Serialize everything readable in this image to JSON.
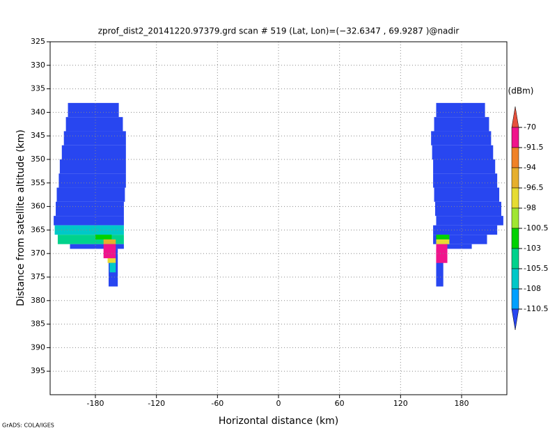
{
  "chart_data": {
    "type": "heatmap",
    "title": "zprof_dist2_20141220.97379.grd  scan # 519  (Lat, Lon)=(−32.6347 , 69.9287 )@nadir",
    "xlabel": "Horizontal distance (km)",
    "ylabel": "Distance from satellite altitude (km)",
    "footer": "GrADS: COLA/IGES",
    "xlim": [
      -224.5,
      224.5
    ],
    "xticks": [
      -180,
      -120,
      -60,
      0,
      60,
      120,
      180
    ],
    "ylim": [
      400,
      325
    ],
    "yticks": [
      325,
      330,
      335,
      340,
      345,
      350,
      355,
      360,
      365,
      370,
      375,
      380,
      385,
      390,
      395
    ],
    "grid": true,
    "colorbar": {
      "label": "(dBm)",
      "levels": [
        -70,
        -91.5,
        -94,
        -96.5,
        -98,
        -100.5,
        -103,
        -105.5,
        -108,
        -110.5
      ],
      "colors": [
        "#e6503c",
        "#f0148c",
        "#f08228",
        "#e6af2d",
        "#e6dc32",
        "#a0e632",
        "#00d200",
        "#00d28c",
        "#00c8c8",
        "#00a0ff",
        "#2846f0"
      ]
    },
    "cells": [
      {
        "x": [
          -207,
          -157
        ],
        "y": [
          338,
          341
        ],
        "value": -112
      },
      {
        "x": [
          -209,
          -153
        ],
        "y": [
          341,
          344
        ],
        "value": -112
      },
      {
        "x": [
          -211,
          -150
        ],
        "y": [
          344,
          347
        ],
        "value": -112
      },
      {
        "x": [
          -213,
          -150
        ],
        "y": [
          347,
          350
        ],
        "value": -112
      },
      {
        "x": [
          -215,
          -150
        ],
        "y": [
          350,
          353
        ],
        "value": -112
      },
      {
        "x": [
          -216,
          -150
        ],
        "y": [
          353,
          356
        ],
        "value": -112
      },
      {
        "x": [
          -218,
          -151
        ],
        "y": [
          356,
          359
        ],
        "value": -112
      },
      {
        "x": [
          -219,
          -152
        ],
        "y": [
          359,
          362
        ],
        "value": -112
      },
      {
        "x": [
          -221,
          -152
        ],
        "y": [
          362,
          364
        ],
        "value": -112
      },
      {
        "x": [
          -220,
          -152
        ],
        "y": [
          364,
          366
        ],
        "value": -107
      },
      {
        "x": [
          -217,
          -152
        ],
        "y": [
          366,
          368
        ],
        "value": -104
      },
      {
        "x": [
          -205,
          -152
        ],
        "y": [
          368,
          369
        ],
        "value": -112
      },
      {
        "x": [
          -167,
          -158
        ],
        "y": [
          369,
          377
        ],
        "value": -112
      },
      {
        "x": [
          -180,
          -164
        ],
        "y": [
          366,
          367
        ],
        "value": -101.5
      },
      {
        "x": [
          -172,
          -160
        ],
        "y": [
          367,
          368
        ],
        "value": -95
      },
      {
        "x": [
          -172,
          -160
        ],
        "y": [
          368,
          371
        ],
        "value": -80
      },
      {
        "x": [
          -168,
          -160
        ],
        "y": [
          371,
          372
        ],
        "value": -97
      },
      {
        "x": [
          -166,
          -160
        ],
        "y": [
          372,
          374
        ],
        "value": -107
      },
      {
        "x": [
          155,
          203
        ],
        "y": [
          338,
          341
        ],
        "value": -112
      },
      {
        "x": [
          153,
          207
        ],
        "y": [
          341,
          344
        ],
        "value": -112
      },
      {
        "x": [
          150,
          209
        ],
        "y": [
          344,
          347
        ],
        "value": -112
      },
      {
        "x": [
          151,
          211
        ],
        "y": [
          347,
          350
        ],
        "value": -112
      },
      {
        "x": [
          152,
          213
        ],
        "y": [
          350,
          353
        ],
        "value": -112
      },
      {
        "x": [
          152,
          215
        ],
        "y": [
          353,
          356
        ],
        "value": -112
      },
      {
        "x": [
          153,
          217
        ],
        "y": [
          356,
          359
        ],
        "value": -112
      },
      {
        "x": [
          154,
          219
        ],
        "y": [
          359,
          362
        ],
        "value": -112
      },
      {
        "x": [
          155,
          221
        ],
        "y": [
          362,
          364
        ],
        "value": -112
      },
      {
        "x": [
          152,
          215
        ],
        "y": [
          364,
          366
        ],
        "value": -112
      },
      {
        "x": [
          152,
          205
        ],
        "y": [
          366,
          368
        ],
        "value": -112
      },
      {
        "x": [
          165,
          190
        ],
        "y": [
          368,
          369
        ],
        "value": -112
      },
      {
        "x": [
          155,
          162
        ],
        "y": [
          369,
          377
        ],
        "value": -112
      },
      {
        "x": [
          155,
          168
        ],
        "y": [
          366,
          367
        ],
        "value": -101.5
      },
      {
        "x": [
          155,
          168
        ],
        "y": [
          367,
          368
        ],
        "value": -97
      },
      {
        "x": [
          155,
          166
        ],
        "y": [
          368,
          372
        ],
        "value": -80
      }
    ]
  }
}
